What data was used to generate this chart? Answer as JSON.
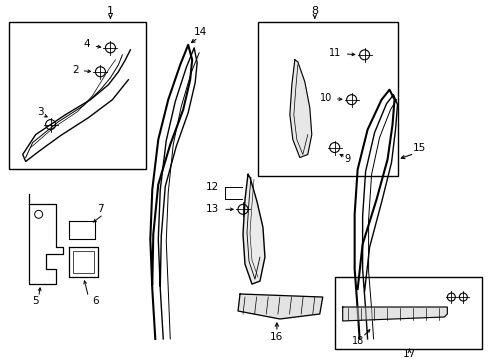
{
  "background_color": "#ffffff",
  "line_color": "#000000",
  "figure_width": 4.89,
  "figure_height": 3.6,
  "dpi": 100
}
